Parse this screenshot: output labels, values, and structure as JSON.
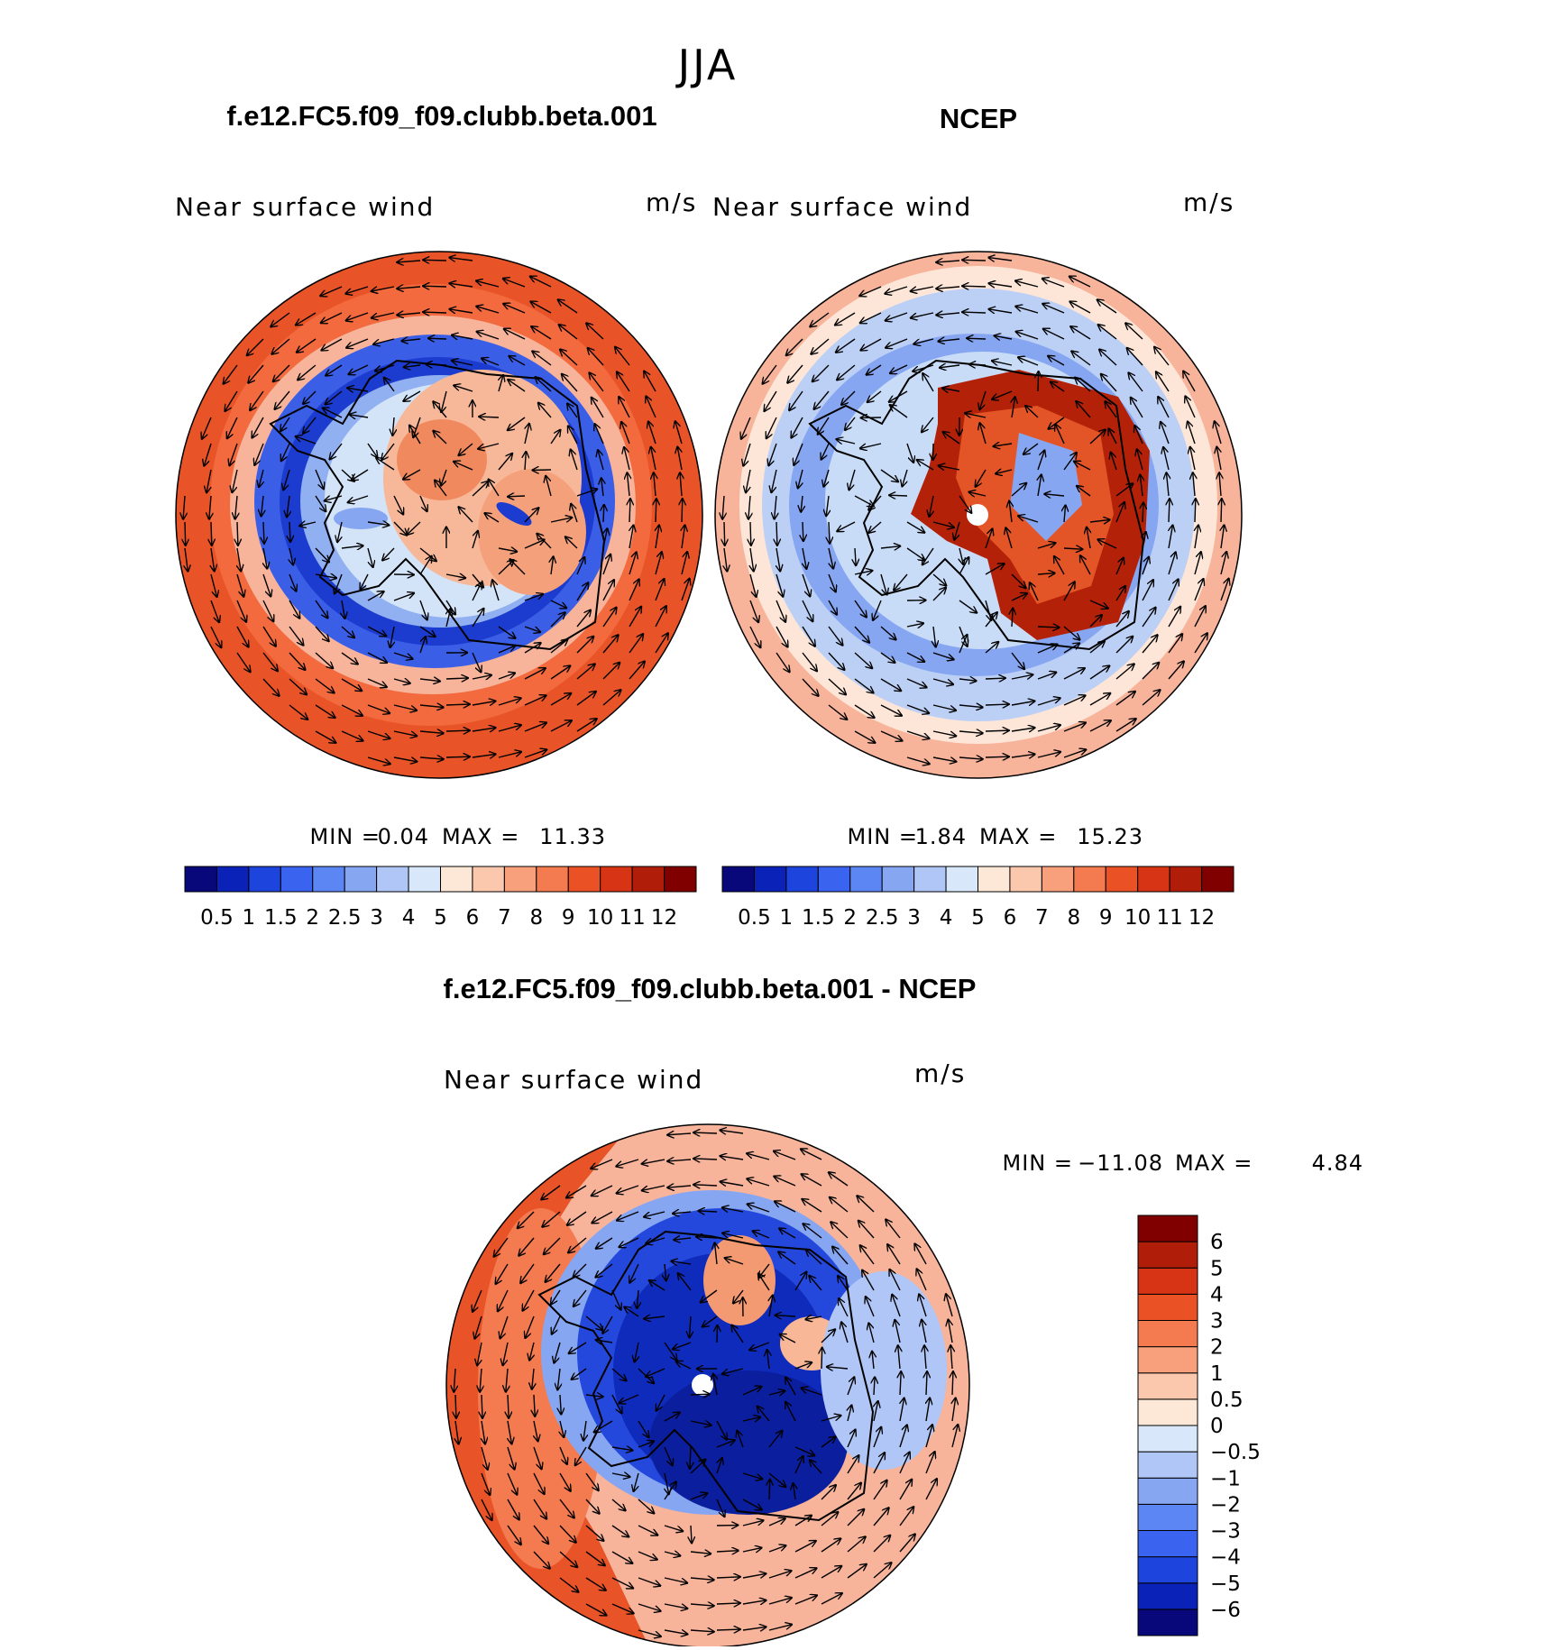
{
  "season": "JJA",
  "panels": {
    "model": {
      "title": "f.e12.FC5.f09_f09.clubb.beta.001",
      "variable": "Near surface wind",
      "units": "m/s",
      "min_label": "MIN =",
      "min": "0.04",
      "max_label": "MAX =",
      "max": "11.33"
    },
    "obs": {
      "title": "NCEP",
      "variable": "Near surface wind",
      "units": "m/s",
      "min_label": "MIN =",
      "min": "1.84",
      "max_label": "MAX =",
      "max": "15.23"
    },
    "diff": {
      "title": "f.e12.FC5.f09_f09.clubb.beta.001 - NCEP",
      "variable": "Near surface wind",
      "units": "m/s",
      "min_label": "MIN =",
      "min": "−11.08",
      "max_label": "MAX =",
      "max": "4.84"
    }
  },
  "colorbars": {
    "abs": {
      "colors": [
        "#08087a",
        "#0a22b8",
        "#1e44de",
        "#3a64f0",
        "#5c86f4",
        "#86a6f2",
        "#b0c6f6",
        "#d8e8fa",
        "#fde8d8",
        "#fbc8ae",
        "#f8a07c",
        "#f47a50",
        "#ea5226",
        "#d63414",
        "#b01e0a",
        "#800000"
      ],
      "ticks": [
        "0.5",
        "1",
        "1.5",
        "2",
        "2.5",
        "3",
        "4",
        "5",
        "6",
        "7",
        "8",
        "9",
        "10",
        "11",
        "12"
      ]
    },
    "diff": {
      "colors": [
        "#08087a",
        "#0a22b8",
        "#1e44de",
        "#3a64f0",
        "#5c86f4",
        "#86a6f2",
        "#b0c6f6",
        "#d8e8fa",
        "#fde8d8",
        "#fbc8ae",
        "#f8a07c",
        "#f47a50",
        "#ea5226",
        "#d63414",
        "#b01e0a",
        "#800000"
      ],
      "ticks": [
        "−6",
        "−5",
        "−4",
        "−3",
        "−2",
        "−1",
        "−0.5",
        "0",
        "0.5",
        "1",
        "2",
        "3",
        "4",
        "5",
        "6"
      ]
    }
  }
}
